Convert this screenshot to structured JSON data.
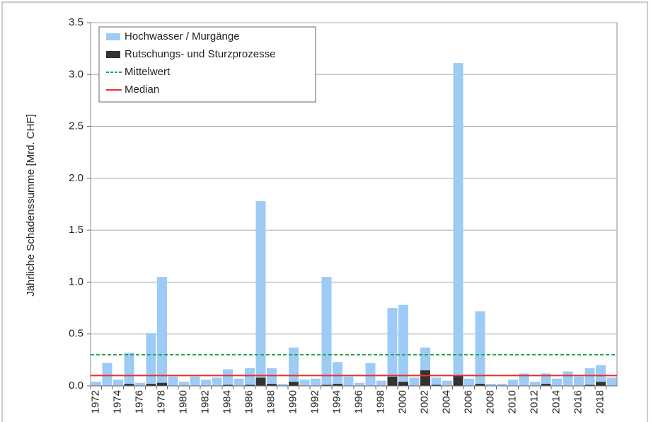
{
  "chart_data": {
    "type": "bar",
    "stacked": true,
    "y_label": "Jährliche Schadenssumme [Mrd. CHF]",
    "categories": [
      "1972",
      null,
      "1974",
      null,
      "1976",
      null,
      "1978",
      null,
      "1980",
      null,
      "1982",
      null,
      "1984",
      null,
      "1986",
      null,
      "1988",
      null,
      "1990",
      null,
      "1992",
      null,
      "1994",
      null,
      "1996",
      null,
      "1998",
      null,
      "2000",
      null,
      "2002",
      null,
      "2004",
      null,
      "2006",
      null,
      "2008",
      null,
      "2010",
      null,
      "2012",
      null,
      "2014",
      null,
      "2016",
      null,
      "2018",
      null
    ],
    "series": [
      {
        "name": "Rutschungs- und Sturzprozesse",
        "color": "#333333",
        "values": [
          0,
          0,
          0,
          0.02,
          0,
          0.02,
          0.03,
          0,
          0,
          0,
          0,
          0,
          0.01,
          0,
          0.01,
          0.08,
          0.02,
          0,
          0.04,
          0,
          0,
          0.01,
          0.02,
          0,
          0,
          0,
          0,
          0.09,
          0.04,
          0,
          0.15,
          0.01,
          0,
          0.1,
          0,
          0.02,
          0,
          0,
          0,
          0,
          0,
          0.02,
          0,
          0,
          0,
          0.01,
          0.04,
          0
        ]
      },
      {
        "name": "Hochwasser / Murgänge",
        "color": "#9dcbf5",
        "values": [
          0.04,
          0.22,
          0.06,
          0.3,
          0.03,
          0.49,
          1.02,
          0.09,
          0.04,
          0.09,
          0.06,
          0.08,
          0.15,
          0.07,
          0.16,
          1.7,
          0.15,
          0.02,
          0.33,
          0.06,
          0.07,
          1.04,
          0.21,
          0.09,
          0.03,
          0.22,
          0.05,
          0.66,
          0.74,
          0.08,
          0.22,
          0.07,
          0.05,
          3.01,
          0.07,
          0.7,
          0.02,
          0.02,
          0.06,
          0.12,
          0.04,
          0.1,
          0.07,
          0.14,
          0.09,
          0.16,
          0.16,
          0.08
        ]
      }
    ],
    "legend_order": [
      1,
      0
    ],
    "reference_lines": [
      {
        "name": "Mittelwert",
        "value": 0.3,
        "color": "#22a84a",
        "dashed": true
      },
      {
        "name": "Median",
        "value": 0.1,
        "color": "#e8302a",
        "dashed": false
      }
    ],
    "ylim": [
      0,
      3.5
    ],
    "yticks": [
      {
        "value": 0,
        "label": "0.0"
      },
      0.5,
      {
        "value": 1,
        "label": "1.0"
      },
      1.5,
      {
        "value": 2,
        "label": "2.0"
      },
      2.5,
      {
        "value": 3,
        "label": "3.0"
      },
      3.5
    ],
    "grid": true,
    "legend": "upper left"
  }
}
